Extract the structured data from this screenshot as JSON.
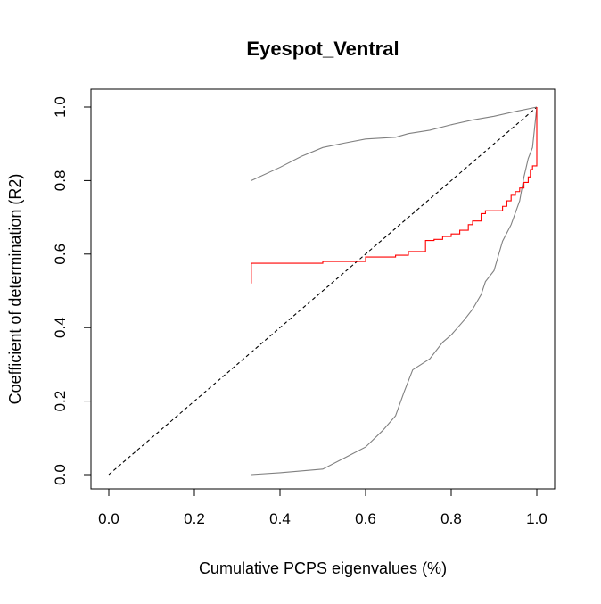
{
  "chart_data": {
    "type": "line",
    "title": "Eyespot_Ventral",
    "xlabel": "Cumulative PCPS eigenvalues (%)",
    "ylabel": "Coefficient of determination (R2)",
    "xlim": [
      0.0,
      1.0
    ],
    "ylim": [
      0.0,
      1.0
    ],
    "xticks": [
      "0.0",
      "0.2",
      "0.4",
      "0.6",
      "0.8",
      "1.0"
    ],
    "yticks": [
      "0.0",
      "0.2",
      "0.4",
      "0.6",
      "0.8",
      "1.0"
    ],
    "grid": false,
    "legend": "none",
    "series": [
      {
        "role": "reference",
        "style": "dashed",
        "color": "#000000",
        "x": [
          0.0,
          1.0
        ],
        "y": [
          0.0,
          1.0
        ]
      },
      {
        "role": "upper-envelope",
        "style": "solid",
        "color": "#808080",
        "x": [
          0.333,
          0.4,
          0.45,
          0.5,
          0.55,
          0.6,
          0.67,
          0.7,
          0.75,
          0.8,
          0.85,
          0.9,
          0.95,
          1.0
        ],
        "y": [
          0.8,
          0.836,
          0.866,
          0.89,
          0.902,
          0.913,
          0.918,
          0.928,
          0.937,
          0.952,
          0.965,
          0.975,
          0.988,
          1.0
        ]
      },
      {
        "role": "lower-envelope",
        "style": "solid",
        "color": "#808080",
        "x": [
          0.333,
          0.4,
          0.5,
          0.55,
          0.6,
          0.64,
          0.67,
          0.69,
          0.71,
          0.75,
          0.78,
          0.8,
          0.83,
          0.85,
          0.87,
          0.88,
          0.9,
          0.91,
          0.92,
          0.94,
          0.96,
          0.97,
          0.98,
          0.99,
          1.0
        ],
        "y": [
          0.0,
          0.005,
          0.015,
          0.045,
          0.075,
          0.12,
          0.16,
          0.225,
          0.285,
          0.315,
          0.36,
          0.38,
          0.42,
          0.45,
          0.49,
          0.525,
          0.555,
          0.595,
          0.635,
          0.68,
          0.745,
          0.81,
          0.86,
          0.89,
          1.0
        ]
      },
      {
        "role": "observed",
        "style": "step",
        "color": "#ff0000",
        "x": [
          0.333,
          0.333,
          0.5,
          0.6,
          0.67,
          0.7,
          0.74,
          0.76,
          0.78,
          0.8,
          0.82,
          0.84,
          0.85,
          0.87,
          0.88,
          0.92,
          0.93,
          0.94,
          0.95,
          0.96,
          0.97,
          0.98,
          0.985,
          0.99,
          1.0,
          1.0,
          1.0
        ],
        "y": [
          0.52,
          0.575,
          0.58,
          0.592,
          0.597,
          0.607,
          0.637,
          0.64,
          0.648,
          0.655,
          0.665,
          0.68,
          0.69,
          0.71,
          0.718,
          0.73,
          0.745,
          0.76,
          0.77,
          0.78,
          0.795,
          0.81,
          0.83,
          0.84,
          0.845,
          0.9,
          1.0
        ]
      }
    ]
  }
}
